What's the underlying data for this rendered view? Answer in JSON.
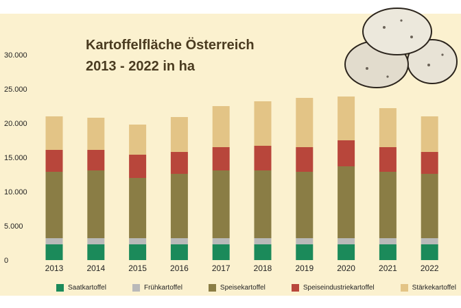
{
  "chart_data": {
    "type": "bar",
    "stacked": true,
    "title": "Kartoffelfläche Österreich",
    "subtitle": "2013 - 2022 in ha",
    "categories": [
      "2013",
      "2014",
      "2015",
      "2016",
      "2017",
      "2018",
      "2019",
      "2020",
      "2021",
      "2022"
    ],
    "series": [
      {
        "name": "Saatkartoffel",
        "color": "#1b8a5a",
        "values": [
          2300,
          2300,
          2300,
          2300,
          2300,
          2300,
          2300,
          2300,
          2300,
          2300
        ]
      },
      {
        "name": "Frühkartoffel",
        "color": "#b9b9b9",
        "values": [
          900,
          900,
          900,
          900,
          900,
          900,
          900,
          900,
          900,
          900
        ]
      },
      {
        "name": "Speisekartoffel",
        "color": "#8a7d45",
        "values": [
          9700,
          9900,
          8800,
          9400,
          9900,
          9900,
          9700,
          10500,
          9700,
          9400
        ]
      },
      {
        "name": "Speiseindustriekartoffel",
        "color": "#b8463b",
        "values": [
          3200,
          3000,
          3400,
          3200,
          3400,
          3600,
          3600,
          3800,
          3600,
          3200
        ]
      },
      {
        "name": "Stärkekartoffel",
        "color": "#e3c486",
        "values": [
          4900,
          4700,
          4400,
          5100,
          6000,
          6500,
          7200,
          6400,
          5700,
          5200
        ]
      }
    ],
    "yticks": [
      "0",
      "5.000",
      "10.000",
      "15.000",
      "20.000",
      "25.000",
      "30.000"
    ],
    "ylim": [
      0,
      30000
    ],
    "grid": false,
    "legend": "bottom"
  }
}
